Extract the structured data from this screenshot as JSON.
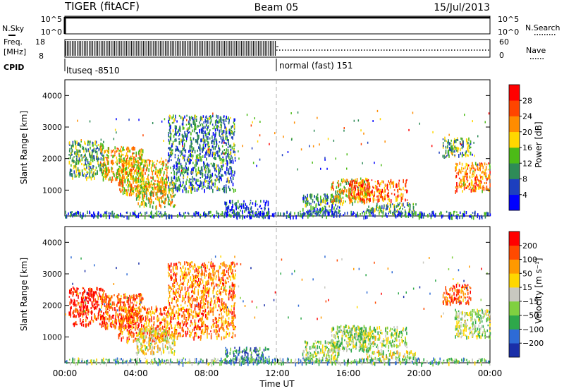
{
  "header": {
    "station": "TIGER (fitACF)",
    "beam": "Beam 05",
    "date": "15/Jul/2013"
  },
  "top_panels": {
    "nsky_label": "N.Sky",
    "nsky_scale": [
      "10^5",
      "10^0"
    ],
    "nsearch_label": "N.Search",
    "nsearch_scale": [
      "10^5",
      "10^0"
    ],
    "freq_label": "Freq.",
    "freq_unit": "[MHz]",
    "freq_ticks": [
      "18",
      "8"
    ],
    "nave_label": "Nave",
    "nave_ticks": [
      "60",
      "0"
    ],
    "cpid_label": "CPID",
    "cpid_segments": [
      {
        "label": "ltuseq -8510",
        "start_h": 0,
        "end_h": 12
      },
      {
        "label": "normal (fast) 151",
        "start_h": 12,
        "end_h": 24
      }
    ]
  },
  "chart_data": [
    {
      "type": "heatmap",
      "name": "power",
      "xlabel": "",
      "ylabel": "Slant Range [km]",
      "xlim_hours": [
        0,
        24
      ],
      "ylim": [
        180,
        4500
      ],
      "yticks": [
        1000,
        2000,
        3000,
        4000
      ],
      "colorbar": {
        "label": "Power [dB]",
        "ticks": [
          "28",
          "24",
          "20",
          "16",
          "12",
          "8",
          "4"
        ],
        "colors": [
          "#0000ff",
          "#1d3fbf",
          "#2e8b57",
          "#4cbb17",
          "#ffd700",
          "#ff8c00",
          "#ff4500",
          "#ff0000"
        ]
      },
      "regions": [
        {
          "t": [
            0.2,
            2.2
          ],
          "r": [
            1400,
            2600
          ],
          "level": 0.38
        },
        {
          "t": [
            2.0,
            4.4
          ],
          "r": [
            1300,
            2400
          ],
          "level": 0.62
        },
        {
          "t": [
            3.0,
            5.8
          ],
          "r": [
            900,
            2000
          ],
          "level": 0.6
        },
        {
          "t": [
            4.0,
            6.2
          ],
          "r": [
            500,
            1300
          ],
          "level": 0.55
        },
        {
          "t": [
            5.8,
            9.6
          ],
          "r": [
            1000,
            3400
          ],
          "level": 0.3
        },
        {
          "t": [
            9.0,
            11.5
          ],
          "r": [
            180,
            700
          ],
          "level": 0.18
        },
        {
          "t": [
            13.4,
            15.5
          ],
          "r": [
            250,
            900
          ],
          "level": 0.3
        },
        {
          "t": [
            15.0,
            17.2
          ],
          "r": [
            600,
            1400
          ],
          "level": 0.55
        },
        {
          "t": [
            16.0,
            19.3
          ],
          "r": [
            700,
            1350
          ],
          "level": 0.75
        },
        {
          "t": [
            17.0,
            19.8
          ],
          "r": [
            300,
            620
          ],
          "level": 0.4
        },
        {
          "t": [
            22.0,
            24.0
          ],
          "r": [
            1000,
            1900
          ],
          "level": 0.7
        },
        {
          "t": [
            21.3,
            22.9
          ],
          "r": [
            2100,
            2700
          ],
          "level": 0.4
        },
        {
          "t": [
            0,
            24
          ],
          "r": [
            180,
            350
          ],
          "level": 0.25
        }
      ]
    },
    {
      "type": "heatmap",
      "name": "velocity",
      "xlabel": "Time UT",
      "ylabel": "Slant Range [km]",
      "xlim_hours": [
        0,
        24
      ],
      "xticks": [
        "00:00",
        "04:00",
        "08:00",
        "12:00",
        "16:00",
        "20:00",
        "00:00"
      ],
      "ylim": [
        180,
        4500
      ],
      "yticks": [
        1000,
        2000,
        3000,
        4000
      ],
      "colorbar": {
        "label": "Velocity [m s⁻¹]",
        "ticks": [
          "200",
          "100",
          "50",
          "15",
          "−15",
          "−50",
          "−100",
          "−200"
        ],
        "colors": [
          "#1a2fa8",
          "#2e6bd6",
          "#2ea84a",
          "#80d040",
          "#c8c8c0",
          "#ffd700",
          "#ff9900",
          "#ff4a00",
          "#ff0000"
        ]
      },
      "regions": [
        {
          "t": [
            0.2,
            2.2
          ],
          "r": [
            1400,
            2600
          ],
          "level": 0.92
        },
        {
          "t": [
            2.0,
            4.4
          ],
          "r": [
            1300,
            2400
          ],
          "level": 0.85
        },
        {
          "t": [
            3.0,
            5.8
          ],
          "r": [
            900,
            2000
          ],
          "level": 0.8
        },
        {
          "t": [
            4.0,
            6.2
          ],
          "r": [
            500,
            1300
          ],
          "level": 0.55
        },
        {
          "t": [
            5.8,
            9.6
          ],
          "r": [
            1000,
            3400
          ],
          "level": 0.78
        },
        {
          "t": [
            9.0,
            11.5
          ],
          "r": [
            180,
            700
          ],
          "level": 0.15
        },
        {
          "t": [
            13.4,
            15.5
          ],
          "r": [
            250,
            900
          ],
          "level": 0.45
        },
        {
          "t": [
            15.0,
            17.2
          ],
          "r": [
            600,
            1400
          ],
          "level": 0.45
        },
        {
          "t": [
            16.0,
            19.3
          ],
          "r": [
            700,
            1350
          ],
          "level": 0.45
        },
        {
          "t": [
            17.0,
            19.8
          ],
          "r": [
            300,
            620
          ],
          "level": 0.5
        },
        {
          "t": [
            22.0,
            24.0
          ],
          "r": [
            1000,
            1900
          ],
          "level": 0.45
        },
        {
          "t": [
            21.3,
            22.9
          ],
          "r": [
            2100,
            2700
          ],
          "level": 0.85
        },
        {
          "t": [
            0,
            24
          ],
          "r": [
            180,
            350
          ],
          "level": 0.35
        }
      ]
    }
  ]
}
